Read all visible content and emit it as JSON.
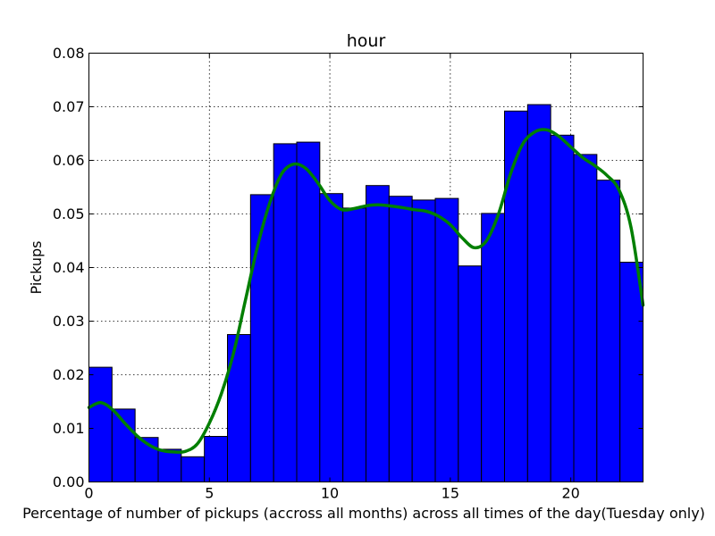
{
  "chart_data": {
    "type": "bar",
    "title": "hour",
    "xlabel": "Percentage of number of pickups (accross all months) across all times of the day(Tuesday only)",
    "ylabel": "Pickups",
    "xlim": [
      0,
      23
    ],
    "ylim": [
      0,
      0.08
    ],
    "grid": true,
    "xticks": [
      {
        "value": 0,
        "label": "0"
      },
      {
        "value": 5,
        "label": "5"
      },
      {
        "value": 10,
        "label": "10"
      },
      {
        "value": 15,
        "label": "15"
      },
      {
        "value": 20,
        "label": "20"
      }
    ],
    "yticks": [
      {
        "value": 0,
        "label": "0.00"
      },
      {
        "value": 0.01,
        "label": "0.01"
      },
      {
        "value": 0.02,
        "label": "0.02"
      },
      {
        "value": 0.03,
        "label": "0.03"
      },
      {
        "value": 0.04,
        "label": "0.04"
      },
      {
        "value": 0.05,
        "label": "0.05"
      },
      {
        "value": 0.06,
        "label": "0.06"
      },
      {
        "value": 0.07,
        "label": "0.07"
      },
      {
        "value": 0.08,
        "label": "0.08"
      }
    ],
    "bar_color": "#0000ff",
    "bin_edges": [
      0,
      0.9583,
      1.9167,
      2.875,
      3.8333,
      4.7917,
      5.75,
      6.7083,
      7.6667,
      8.625,
      9.5833,
      10.5417,
      11.5,
      12.4583,
      13.4167,
      14.375,
      15.3333,
      16.2917,
      17.25,
      18.2083,
      19.1667,
      20.125,
      21.0833,
      22.0417,
      23
    ],
    "values": [
      0.0214,
      0.0136,
      0.0083,
      0.0061,
      0.0047,
      0.0085,
      0.0275,
      0.0536,
      0.0631,
      0.0634,
      0.0538,
      0.0511,
      0.0553,
      0.0533,
      0.0526,
      0.0529,
      0.0403,
      0.0501,
      0.0692,
      0.0704,
      0.0647,
      0.0611,
      0.0563,
      0.041
    ],
    "kde": {
      "color": "#007f00",
      "x": [
        0,
        0.5,
        1,
        1.5,
        2,
        2.5,
        3,
        3.5,
        4,
        4.5,
        5,
        5.5,
        6,
        6.5,
        7,
        7.5,
        8,
        8.5,
        9,
        9.5,
        10,
        10.5,
        11,
        11.5,
        12,
        12.5,
        13,
        13.5,
        14,
        14.5,
        15,
        15.5,
        16,
        16.5,
        17,
        17.5,
        18,
        18.5,
        19,
        19.5,
        20,
        20.5,
        21,
        21.5,
        22,
        22.5,
        23
      ],
      "y": [
        0.0139,
        0.0148,
        0.0134,
        0.0109,
        0.0086,
        0.0069,
        0.0059,
        0.0056,
        0.0057,
        0.0071,
        0.011,
        0.0165,
        0.024,
        0.034,
        0.044,
        0.052,
        0.0575,
        0.0593,
        0.0585,
        0.0558,
        0.0525,
        0.0508,
        0.051,
        0.0515,
        0.0517,
        0.0515,
        0.0512,
        0.0508,
        0.0505,
        0.0496,
        0.048,
        0.0455,
        0.0437,
        0.045,
        0.05,
        0.0575,
        0.063,
        0.0653,
        0.0657,
        0.0645,
        0.0625,
        0.0605,
        0.059,
        0.0572,
        0.0545,
        0.0475,
        0.033
      ]
    }
  }
}
